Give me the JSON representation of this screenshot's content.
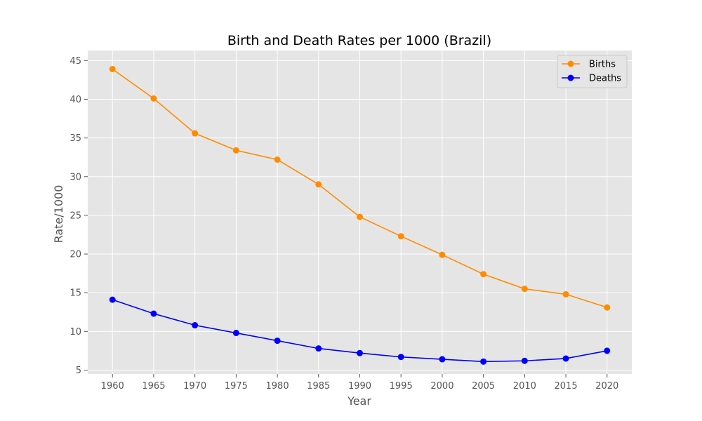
{
  "chart_data": {
    "type": "line",
    "title": "Birth and Death Rates per 1000 (Brazil)",
    "xlabel": "Year",
    "ylabel": "Rate/1000",
    "x": [
      1960,
      1965,
      1970,
      1975,
      1980,
      1985,
      1990,
      1995,
      2000,
      2005,
      2010,
      2015,
      2020
    ],
    "xticks": [
      "1960",
      "1965",
      "1970",
      "1975",
      "1980",
      "1985",
      "1990",
      "1995",
      "2000",
      "2005",
      "2010",
      "2015",
      "2020"
    ],
    "yticks": [
      "5",
      "10",
      "15",
      "20",
      "25",
      "30",
      "35",
      "40",
      "45"
    ],
    "ylim": [
      4.5,
      46.3
    ],
    "grid": true,
    "legend_position": "top-right",
    "series": [
      {
        "name": "Births",
        "color": "#ff8c00",
        "marker": "circle",
        "values": [
          43.9,
          40.1,
          35.6,
          33.4,
          32.2,
          29.0,
          24.8,
          22.3,
          19.9,
          17.4,
          15.5,
          14.8,
          13.1
        ]
      },
      {
        "name": "Deaths",
        "color": "#0000ff",
        "marker": "circle",
        "values": [
          14.1,
          12.3,
          10.8,
          9.8,
          8.8,
          7.8,
          7.2,
          6.7,
          6.4,
          6.1,
          6.2,
          6.5,
          7.5
        ]
      }
    ],
    "style": {
      "plot_background": "#e5e5e5",
      "grid_color": "#ffffff",
      "text_color": "#555555"
    }
  }
}
